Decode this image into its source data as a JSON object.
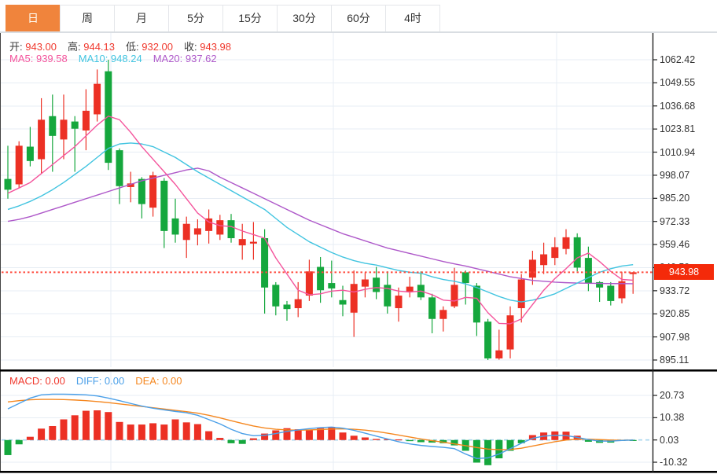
{
  "tabs": {
    "active_index": 0,
    "items": [
      "日",
      "周",
      "月",
      "5分",
      "15分",
      "30分",
      "60分",
      "4时"
    ]
  },
  "main_legend": {
    "ohlc": [
      {
        "key": "open",
        "label": "开:",
        "value": "943.00"
      },
      {
        "key": "high",
        "label": "高:",
        "value": "944.13"
      },
      {
        "key": "low",
        "label": "低:",
        "value": "932.00"
      },
      {
        "key": "close",
        "label": "收:",
        "value": "943.98"
      }
    ],
    "ma": [
      {
        "key": "ma5",
        "label": "MA5:",
        "value": "939.58",
        "color": "#f4549c"
      },
      {
        "key": "ma10",
        "label": "MA10:",
        "value": "948.24",
        "color": "#41c4e0"
      },
      {
        "key": "ma20",
        "label": "MA20:",
        "value": "937.62",
        "color": "#ae58c9"
      }
    ]
  },
  "macd_legend": [
    {
      "key": "macd",
      "label": "MACD:",
      "value": "0.00",
      "color": "#f0392e"
    },
    {
      "key": "diff",
      "label": "DIFF:",
      "value": "0.00",
      "color": "#4a9fe8"
    },
    {
      "key": "dea",
      "label": "DEA:",
      "value": "0.00",
      "color": "#f5871f"
    }
  ],
  "price_axis": {
    "ticks": [
      "1062.42",
      "1049.55",
      "1036.68",
      "1023.81",
      "1010.94",
      "998.07",
      "985.20",
      "972.33",
      "959.46",
      "946.59",
      "933.72",
      "920.85",
      "907.98",
      "895.11"
    ],
    "current_price_label": "943.98"
  },
  "macd_axis": {
    "ticks": [
      "20.73",
      "10.38",
      "0.03",
      "-10.32"
    ]
  },
  "colors": {
    "up": "#ec3024",
    "down": "#15a73d",
    "ma5": "#f4549c",
    "ma10": "#41c4e0",
    "ma20": "#ae58c9",
    "diff_line": "#4a9fe8",
    "dea_line": "#f5871f",
    "grid": "#e7edf4",
    "axis_line": "#222222",
    "axis_text": "#333333",
    "tab_accent": "#f0843c",
    "badge_bg": "#f42a0a",
    "dotted_price_line": "#ff4b3d",
    "zero_dashed_line": "#a9d6ee",
    "value_red": "#f0392e",
    "separator": "#000000"
  },
  "chart_data": [
    {
      "type": "candlestick",
      "timeframe": "日",
      "legend_ohlc": {
        "open": 943.0,
        "high": 944.13,
        "low": 932.0,
        "close": 943.98
      },
      "price_range": [
        895.11,
        1062.42
      ],
      "axis_ticks": [
        1062.42,
        1049.55,
        1036.68,
        1023.81,
        1010.94,
        998.07,
        985.2,
        972.33,
        959.46,
        946.59,
        933.72,
        920.85,
        907.98,
        895.11
      ],
      "current_price": 943.98,
      "grid": true,
      "candles_ohlc": [
        [
          996,
          1014.5,
          985,
          990
        ],
        [
          993,
          1017,
          991,
          1014.5
        ],
        [
          1014,
          1025,
          1003,
          1006
        ],
        [
          1007,
          1041,
          999,
          1029
        ],
        [
          1031,
          1043,
          1000,
          1020
        ],
        [
          1018,
          1043,
          1007,
          1029
        ],
        [
          1028,
          1031,
          1000,
          1024
        ],
        [
          1023,
          1046,
          1012,
          1034
        ],
        [
          1032,
          1057,
          1028,
          1049
        ],
        [
          1056,
          1062.42,
          1001,
          1005
        ],
        [
          1012,
          1013,
          982,
          992
        ],
        [
          991.5,
          1000,
          983,
          993.5
        ],
        [
          996,
          997,
          974,
          982
        ],
        [
          980,
          1000,
          975,
          998
        ],
        [
          995,
          996.5,
          957.5,
          967
        ],
        [
          974,
          985,
          960.5,
          965
        ],
        [
          962,
          975,
          952,
          971
        ],
        [
          965,
          973.5,
          959,
          968.5
        ],
        [
          967,
          979,
          960,
          974
        ],
        [
          965,
          976,
          962,
          973
        ],
        [
          973,
          976.5,
          960.5,
          963
        ],
        [
          959,
          971,
          951,
          962.5
        ],
        [
          960,
          972,
          951,
          961
        ],
        [
          963,
          968,
          921,
          935.5
        ],
        [
          937,
          938.5,
          920,
          925
        ],
        [
          926,
          928,
          917,
          923.5
        ],
        [
          924,
          938.5,
          919,
          929
        ],
        [
          931,
          951,
          928,
          944.5
        ],
        [
          947,
          952.5,
          927,
          934
        ],
        [
          938,
          950.5,
          930,
          935
        ],
        [
          928.5,
          936.5,
          919.5,
          926
        ],
        [
          921.5,
          945,
          908,
          937.5
        ],
        [
          936,
          944,
          930,
          940
        ],
        [
          941,
          947,
          929,
          933
        ],
        [
          937,
          944.5,
          921,
          925
        ],
        [
          924,
          935.5,
          916.5,
          931
        ],
        [
          933,
          941.5,
          930,
          936
        ],
        [
          937,
          944.5,
          928.5,
          930
        ],
        [
          930,
          932,
          910,
          918
        ],
        [
          918,
          925,
          911,
          923
        ],
        [
          925,
          946.5,
          924,
          937
        ],
        [
          944,
          945,
          926,
          938
        ],
        [
          936.5,
          938,
          908.5,
          916
        ],
        [
          916.5,
          918,
          895.11,
          896
        ],
        [
          896,
          912,
          895.3,
          900.5
        ],
        [
          901,
          925,
          896,
          920
        ],
        [
          924,
          943,
          916,
          940
        ],
        [
          941,
          956,
          937,
          951
        ],
        [
          948,
          960.5,
          943,
          954
        ],
        [
          952,
          963.5,
          948,
          958
        ],
        [
          957,
          968,
          954,
          963.5
        ],
        [
          963.5,
          965.7,
          944.5,
          946.6
        ],
        [
          952,
          958.3,
          933.5,
          938
        ],
        [
          938.5,
          939,
          927.5,
          935.5
        ],
        [
          936.5,
          938.5,
          925.5,
          928
        ],
        [
          929.5,
          944.3,
          926.7,
          939
        ],
        [
          943.0,
          944.13,
          932.0,
          943.98
        ]
      ],
      "ma5": [
        988,
        991,
        994,
        999,
        1004,
        1009,
        1014,
        1020,
        1026,
        1031,
        1029,
        1022,
        1014,
        1007,
        1000,
        993,
        985,
        977,
        972,
        970,
        969.5,
        967,
        965,
        963,
        952,
        943,
        934,
        931.5,
        932,
        933.5,
        934,
        933,
        934.5,
        935.5,
        935,
        933.5,
        933,
        933.5,
        931.5,
        928.5,
        928,
        930,
        929.5,
        921.5,
        915.5,
        915.3,
        918,
        926,
        934,
        940.5,
        946,
        952,
        954.7,
        950,
        944.5,
        940,
        939.58
      ],
      "ma10": [
        979,
        981,
        983.5,
        986.5,
        990,
        994,
        998.5,
        1003,
        1008,
        1013,
        1015.5,
        1016,
        1015.5,
        1014,
        1011,
        1008,
        1004,
        1000,
        996.5,
        993,
        989.5,
        986,
        982.5,
        979,
        974,
        969,
        965,
        961,
        958,
        955,
        952.5,
        950.5,
        949,
        948,
        946.5,
        945,
        944,
        943.5,
        941.5,
        940,
        939,
        937.5,
        935.5,
        933,
        930.5,
        928.5,
        927.5,
        928.5,
        930,
        932,
        935,
        938,
        941,
        944,
        946,
        947.5,
        948.24
      ],
      "ma20": [
        972.4,
        973.5,
        975,
        977,
        979,
        981,
        983,
        985,
        987,
        989,
        991,
        993,
        995,
        996.5,
        998,
        999.5,
        1001,
        1002,
        1000.5,
        997,
        994,
        991,
        988,
        985,
        982,
        979,
        976,
        973,
        970.5,
        968,
        965.5,
        963.5,
        961.5,
        959.5,
        957.5,
        956,
        954.5,
        953,
        951.5,
        950,
        948.7,
        947.5,
        946,
        944.5,
        943,
        941.5,
        940.5,
        939.5,
        939,
        938.5,
        938.2,
        938,
        937.9,
        937.8,
        937.7,
        937.7,
        937.62
      ]
    },
    {
      "type": "bar",
      "name": "MACD",
      "legend_values": {
        "macd": 0.0,
        "diff": 0.0,
        "dea": 0.0
      },
      "axis_ticks": [
        20.73,
        10.38,
        0.03,
        -10.32
      ],
      "histogram": [
        -7,
        -2,
        1.5,
        5.3,
        6.5,
        9.6,
        11.5,
        13.6,
        13.8,
        13,
        8.4,
        7.2,
        7.2,
        7.8,
        7.2,
        9.6,
        8.2,
        7.4,
        4.1,
        1,
        -1.5,
        -1.8,
        0.8,
        3,
        4.5,
        5.5,
        5,
        4.5,
        5.5,
        5.8,
        3.5,
        2,
        1.2,
        0.5,
        0.4,
        0.3,
        -0.5,
        -1,
        -1.2,
        -1.5,
        -2.5,
        -5,
        -10.5,
        -11.7,
        -8.5,
        -5,
        -1.5,
        2.3,
        3.5,
        4,
        3.9,
        2,
        -0.8,
        -1.3,
        -1.2,
        -0.4,
        -0.2
      ],
      "diff": [
        14.5,
        17,
        19.5,
        21,
        21.3,
        21.3,
        21.2,
        21,
        20.5,
        19.5,
        18.3,
        17,
        15.8,
        14.8,
        14,
        13.3,
        12.7,
        11.5,
        9.5,
        7.5,
        5,
        3,
        2,
        2.2,
        3,
        4,
        4.7,
        5.3,
        5.8,
        6,
        5.5,
        4.5,
        3.2,
        1.8,
        0.5,
        -0.8,
        -1.8,
        -2.5,
        -3,
        -3.4,
        -4,
        -6.5,
        -8.6,
        -8.3,
        -6.5,
        -4,
        -1.5,
        0.8,
        1.8,
        2.2,
        2.1,
        1.2,
        0.2,
        -0.5,
        -0.5,
        -0.2,
        0
      ],
      "dea": [
        17.7,
        18.3,
        18.7,
        18.9,
        18.9,
        18.8,
        18.6,
        18.3,
        17.9,
        17.4,
        16.8,
        16.2,
        15.6,
        15,
        14.4,
        13.8,
        13.2,
        12.5,
        11.5,
        10.3,
        9,
        7.7,
        6.5,
        5.6,
        5,
        4.7,
        4.6,
        4.7,
        4.9,
        5.1,
        5.2,
        5,
        4.6,
        4,
        3.2,
        2.3,
        1.4,
        0.5,
        -0.3,
        -1,
        -1.8,
        -2.6,
        -3.5,
        -4.2,
        -4.5,
        -4.4,
        -3.8,
        -2.8,
        -1.8,
        -0.8,
        0,
        0.4,
        0.4,
        0.2,
        0,
        -0.1,
        0
      ]
    }
  ]
}
